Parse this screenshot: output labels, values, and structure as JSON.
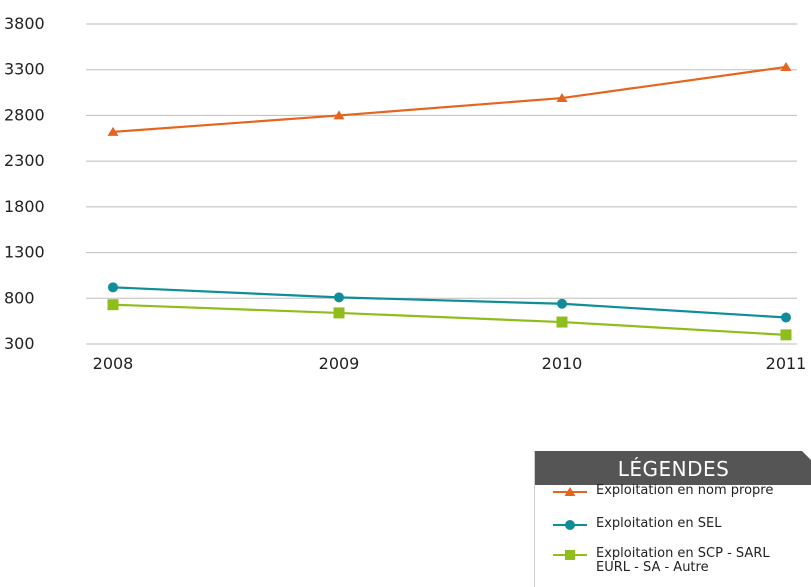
{
  "chart_data": {
    "type": "line",
    "categories": [
      "2008",
      "2009",
      "2010",
      "2011"
    ],
    "ylim": [
      300,
      3800
    ],
    "yticks": [
      3800,
      3300,
      2800,
      2300,
      1800,
      1300,
      800,
      300
    ],
    "grid": true,
    "series": [
      {
        "name": "Exploitation en nom propre",
        "values": [
          2620,
          2800,
          2990,
          3330
        ],
        "color": "#e5641e",
        "marker": "triangle"
      },
      {
        "name": "Exploitation en SEL",
        "values": [
          920,
          810,
          740,
          590
        ],
        "color": "#0f8d99",
        "marker": "circle"
      },
      {
        "name": "Exploitation en SCP - SARL EURL - SA - Autre",
        "values": [
          730,
          640,
          540,
          400
        ],
        "color": "#8fbd1c",
        "marker": "square"
      }
    ]
  },
  "legend": {
    "title": "LÉGENDES",
    "items": [
      {
        "label": "Exploitation en nom propre"
      },
      {
        "label": "Exploitation en SEL"
      },
      {
        "label": "Exploitation en SCP - SARL EURL - SA - Autre"
      }
    ]
  }
}
